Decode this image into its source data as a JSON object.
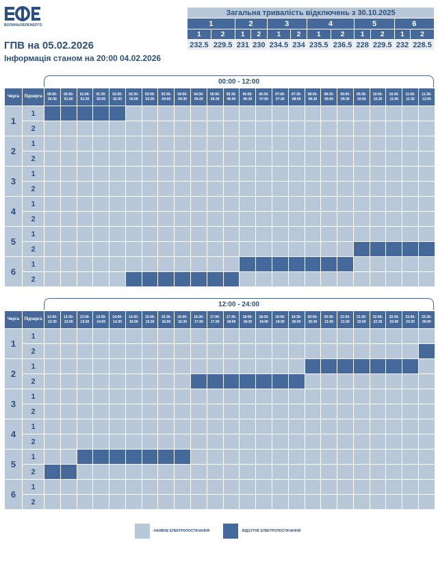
{
  "logo": {
    "mark": "ВОЕ",
    "text": "ВОЛИНЬОБЛЕНЕРГО"
  },
  "header": {
    "date_title": "ГПВ на 05.02.2026",
    "info_line": "Інформація станом на 20:00 04.02.2026"
  },
  "summary": {
    "title": "Загальна тривалість відключень з 30.10.2025",
    "queues": [
      "1",
      "2",
      "3",
      "4",
      "5",
      "6"
    ],
    "subs": [
      "1",
      "2"
    ],
    "values": [
      "232.5",
      "229.5",
      "231",
      "230",
      "234.5",
      "234",
      "235.5",
      "236.5",
      "228",
      "229.5",
      "232",
      "228.5"
    ]
  },
  "schedule": {
    "queue_header": "Черга",
    "sub_header": "Підчерга",
    "queues": [
      "1",
      "2",
      "3",
      "4",
      "5",
      "6"
    ],
    "subs": [
      "1",
      "2"
    ],
    "blocks": [
      {
        "range": "00:00 - 12:00",
        "slots": [
          "00:00-00:30",
          "00:30-01:00",
          "01:00-01:30",
          "01:30-02:00",
          "02:00-02:30",
          "02:30-03:00",
          "03:00-03:30",
          "03:30-04:00",
          "04:00-04:30",
          "04:30-05:00",
          "05:00-05:30",
          "05:30-06:00",
          "06:00-06:30",
          "06:30-07:00",
          "07:00-07:30",
          "07:30-08:00",
          "08:00-08:30",
          "08:30-09:00",
          "09:00-09:30",
          "09:30-10:00",
          "10:00-10:30",
          "10:30-11:00",
          "11:00-11:30",
          "11:30-12:00"
        ],
        "rows": [
          [
            1,
            1,
            1,
            1,
            1,
            0,
            0,
            0,
            0,
            0,
            0,
            0,
            0,
            0,
            0,
            0,
            0,
            0,
            0,
            0,
            0,
            0,
            0,
            0
          ],
          [
            0,
            0,
            0,
            0,
            0,
            0,
            0,
            0,
            0,
            0,
            0,
            0,
            0,
            0,
            0,
            0,
            0,
            0,
            0,
            0,
            0,
            0,
            0,
            0
          ],
          [
            0,
            0,
            0,
            0,
            0,
            0,
            0,
            0,
            0,
            0,
            0,
            0,
            0,
            0,
            0,
            0,
            0,
            0,
            0,
            0,
            0,
            0,
            0,
            0
          ],
          [
            0,
            0,
            0,
            0,
            0,
            0,
            0,
            0,
            0,
            0,
            0,
            0,
            0,
            0,
            0,
            0,
            0,
            0,
            0,
            0,
            0,
            0,
            0,
            0
          ],
          [
            0,
            0,
            0,
            0,
            0,
            0,
            0,
            0,
            0,
            0,
            0,
            0,
            0,
            0,
            0,
            0,
            0,
            0,
            0,
            0,
            0,
            0,
            0,
            0
          ],
          [
            0,
            0,
            0,
            0,
            0,
            0,
            0,
            0,
            0,
            0,
            0,
            0,
            0,
            0,
            0,
            0,
            0,
            0,
            0,
            0,
            0,
            0,
            0,
            0
          ],
          [
            0,
            0,
            0,
            0,
            0,
            0,
            0,
            0,
            0,
            0,
            0,
            0,
            0,
            0,
            0,
            0,
            0,
            0,
            0,
            0,
            0,
            0,
            0,
            0
          ],
          [
            0,
            0,
            0,
            0,
            0,
            0,
            0,
            0,
            0,
            0,
            0,
            0,
            0,
            0,
            0,
            0,
            0,
            0,
            0,
            0,
            0,
            0,
            0,
            0
          ],
          [
            0,
            0,
            0,
            0,
            0,
            0,
            0,
            0,
            0,
            0,
            0,
            0,
            0,
            0,
            0,
            0,
            0,
            0,
            0,
            0,
            0,
            0,
            0,
            0
          ],
          [
            0,
            0,
            0,
            0,
            0,
            0,
            0,
            0,
            0,
            0,
            0,
            0,
            0,
            0,
            0,
            0,
            0,
            0,
            0,
            1,
            1,
            1,
            1,
            1
          ],
          [
            0,
            0,
            0,
            0,
            0,
            0,
            0,
            0,
            0,
            0,
            0,
            0,
            1,
            1,
            1,
            1,
            1,
            1,
            1,
            0,
            0,
            0,
            0,
            0
          ],
          [
            0,
            0,
            0,
            0,
            0,
            1,
            1,
            1,
            1,
            1,
            1,
            1,
            0,
            0,
            0,
            0,
            0,
            0,
            0,
            0,
            0,
            0,
            0,
            0
          ]
        ]
      },
      {
        "range": "12:00 - 24:00",
        "slots": [
          "12:00-12:30",
          "12:30-13:00",
          "13:00-13:30",
          "13:30-14:00",
          "14:00-14:30",
          "14:30-15:00",
          "15:00-15:30",
          "15:30-16:00",
          "16:00-16:30",
          "16:30-17:00",
          "17:00-17:30",
          "17:30-18:00",
          "18:00-18:30",
          "18:30-19:00",
          "19:00-19:30",
          "19:30-20:00",
          "20:00-20:30",
          "20:30-21:00",
          "21:00-21:30",
          "21:30-22:00",
          "22:00-22:30",
          "22:30-23:00",
          "23:00-23:30",
          "23:30-00:00"
        ],
        "rows": [
          [
            0,
            0,
            0,
            0,
            0,
            0,
            0,
            0,
            0,
            0,
            0,
            0,
            0,
            0,
            0,
            0,
            0,
            0,
            0,
            0,
            0,
            0,
            0,
            0
          ],
          [
            0,
            0,
            0,
            0,
            0,
            0,
            0,
            0,
            0,
            0,
            0,
            0,
            0,
            0,
            0,
            0,
            0,
            0,
            0,
            0,
            0,
            0,
            0,
            1
          ],
          [
            0,
            0,
            0,
            0,
            0,
            0,
            0,
            0,
            0,
            0,
            0,
            0,
            0,
            0,
            0,
            0,
            1,
            1,
            1,
            1,
            1,
            1,
            1,
            0
          ],
          [
            0,
            0,
            0,
            0,
            0,
            0,
            0,
            0,
            0,
            1,
            1,
            1,
            1,
            1,
            1,
            1,
            0,
            0,
            0,
            0,
            0,
            0,
            0,
            0
          ],
          [
            0,
            0,
            0,
            0,
            0,
            0,
            0,
            0,
            0,
            0,
            0,
            0,
            0,
            0,
            0,
            0,
            0,
            0,
            0,
            0,
            0,
            0,
            0,
            0
          ],
          [
            0,
            0,
            0,
            0,
            0,
            0,
            0,
            0,
            0,
            0,
            0,
            0,
            0,
            0,
            0,
            0,
            0,
            0,
            0,
            0,
            0,
            0,
            0,
            0
          ],
          [
            0,
            0,
            0,
            0,
            0,
            0,
            0,
            0,
            0,
            0,
            0,
            0,
            0,
            0,
            0,
            0,
            0,
            0,
            0,
            0,
            0,
            0,
            0,
            0
          ],
          [
            0,
            0,
            0,
            0,
            0,
            0,
            0,
            0,
            0,
            0,
            0,
            0,
            0,
            0,
            0,
            0,
            0,
            0,
            0,
            0,
            0,
            0,
            0,
            0
          ],
          [
            0,
            0,
            1,
            1,
            1,
            1,
            1,
            1,
            1,
            0,
            0,
            0,
            0,
            0,
            0,
            0,
            0,
            0,
            0,
            0,
            0,
            0,
            0,
            0
          ],
          [
            1,
            1,
            0,
            0,
            0,
            0,
            0,
            0,
            0,
            0,
            0,
            0,
            0,
            0,
            0,
            0,
            0,
            0,
            0,
            0,
            0,
            0,
            0,
            0
          ],
          [
            0,
            0,
            0,
            0,
            0,
            0,
            0,
            0,
            0,
            0,
            0,
            0,
            0,
            0,
            0,
            0,
            0,
            0,
            0,
            0,
            0,
            0,
            0,
            0
          ],
          [
            0,
            0,
            0,
            0,
            0,
            0,
            0,
            0,
            0,
            0,
            0,
            0,
            0,
            0,
            0,
            0,
            0,
            0,
            0,
            0,
            0,
            0,
            0,
            0
          ]
        ]
      }
    ]
  },
  "legend": {
    "available": "- НАЯВНЕ ЕЛЕКТРОПОСТАЧАННЯ",
    "absent": "- ВІДСУТНЄ ЕЛЕКТРОПОСТАЧАННЯ"
  },
  "colors": {
    "available": "#b9c8d9",
    "absent": "#45699a",
    "header": "#45699a",
    "text": "#2b4f7e"
  }
}
